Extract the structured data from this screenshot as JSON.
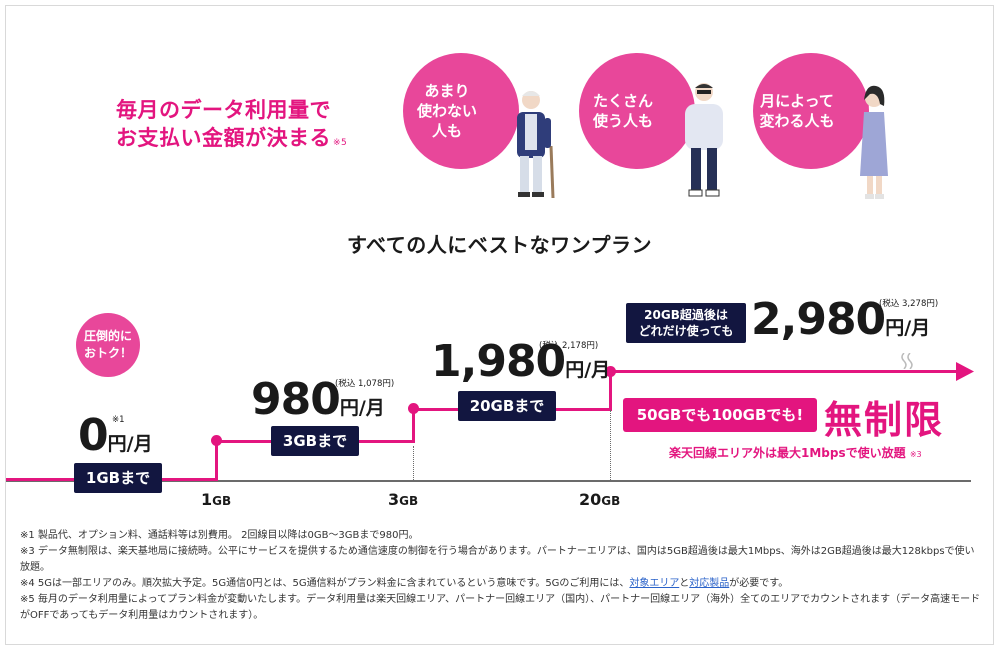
{
  "headline": {
    "line1": "毎月のデータ利用量で",
    "line2": "お支払い金額が決まる",
    "note": "※5"
  },
  "bubbles": [
    {
      "text": "あまり\n使わない\n人も"
    },
    {
      "text": "たくさん\n使う人も"
    },
    {
      "text": "月によって\n変わる人も"
    }
  ],
  "subtitle": "すべての人にベストなワンプラン",
  "tiers": [
    {
      "price": "0",
      "yen": "円/月",
      "tax": "※1",
      "badge": "1GBまで"
    },
    {
      "price": "980",
      "yen": "円/月",
      "tax": "(税込 1,078円)",
      "badge": "3GBまで"
    },
    {
      "price": "1,980",
      "yen": "円/月",
      "tax": "(税込 2,178円)",
      "badge": "20GBまで"
    },
    {
      "price": "2,980",
      "yen": "円/月",
      "tax": "(税込 3,278円)",
      "badge": "20GB超過後は\nどれだけ使っても"
    }
  ],
  "circle_deal": "圧倒的に\nおトク！",
  "axis_labels": [
    {
      "num": "1",
      "unit": "GB"
    },
    {
      "num": "3",
      "unit": "GB"
    },
    {
      "num": "20",
      "unit": "GB"
    }
  ],
  "unlimited": {
    "box": "50GBでも100GBでも!",
    "big": "無制限",
    "outside_text": "楽天回線エリア外は最大1Mbpsで使い放題",
    "outside_note": "※3"
  },
  "footnotes": {
    "n1": "※1 製品代、オプション料、通話料等は別費用。 2回線目以降は0GB〜3GBまで980円。",
    "n3": "※3 データ無制限は、楽天基地局に接続時。公平にサービスを提供するため通信速度の制御を行う場合があります。パートナーエリアは、国内は5GB超過後は最大1Mbps、海外は2GB超過後は最大128kbpsで使い放題。",
    "n4_pre": "※4 5Gは一部エリアのみ。順次拡大予定。5G通信0円とは、5G通信料がプラン料金に含まれているという意味です。5Gのご利用には、",
    "n4_link1": "対象エリア",
    "n4_mid": "と",
    "n4_link2": "対応製品",
    "n4_post": "が必要です。",
    "n5": "※5 毎月のデータ利用量によってプラン料金が変動いたします。データ利用量は楽天回線エリア、パートナー回線エリア（国内）、パートナー回線エリア（海外）全てのエリアでカウントされます（データ高速モードがOFFであってもデータ利用量はカウントされます）。"
  },
  "colors": {
    "accent": "#e3157f",
    "navy": "#121640",
    "bubble": "#e8479a"
  }
}
